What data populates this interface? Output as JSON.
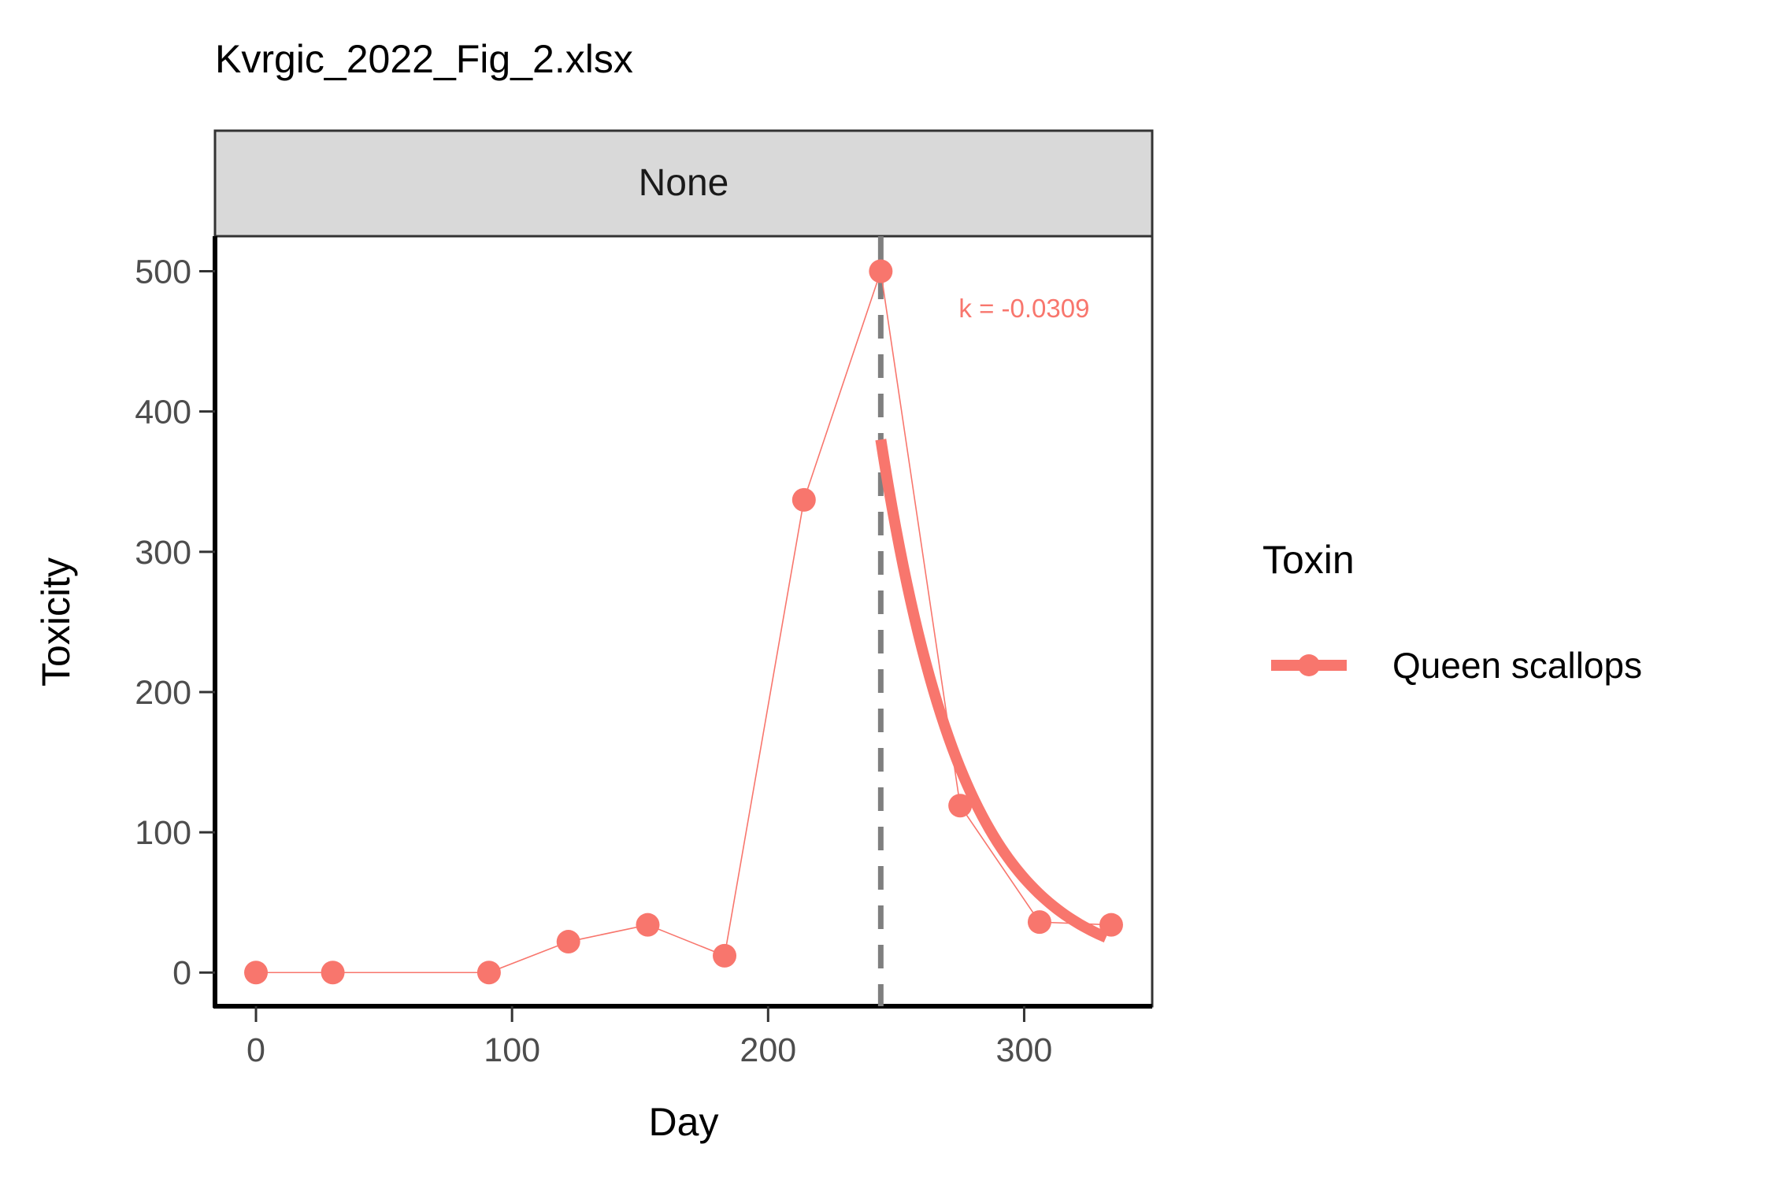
{
  "chart_data": {
    "type": "line",
    "title": "Kvrgic_2022_Fig_2.xlsx",
    "facet_label": "None",
    "xlabel": "Day",
    "ylabel": "Toxicity",
    "xlim": [
      -16,
      350
    ],
    "ylim": [
      -24,
      525
    ],
    "x_ticks": [
      0,
      100,
      200,
      300
    ],
    "y_ticks": [
      0,
      100,
      200,
      300,
      400,
      500
    ],
    "x_tick_labels": [
      "0",
      "100",
      "200",
      "300"
    ],
    "y_tick_labels": [
      "0",
      "100",
      "200",
      "300",
      "400",
      "500"
    ],
    "grid": false,
    "legend": {
      "title": "Toxin",
      "position": "right",
      "entries": [
        "Queen scallops"
      ]
    },
    "series": [
      {
        "name": "Queen scallops",
        "color": "#F8766D",
        "x": [
          0,
          30,
          91,
          122,
          153,
          183,
          214,
          244,
          275,
          306,
          334
        ],
        "y": [
          0,
          0,
          0,
          22,
          34,
          12,
          337,
          500,
          119,
          36,
          34
        ]
      }
    ],
    "fit": {
      "color": "#F8766D",
      "start_x": 244,
      "end_x": 332,
      "start_y": 380,
      "k": -0.0309
    },
    "vline": {
      "x": 244,
      "color": "#7f7f7f",
      "style": "dashed"
    },
    "annotation": {
      "text": "k = -0.0309",
      "x": 300,
      "y": 474,
      "color": "#F8766D"
    }
  }
}
